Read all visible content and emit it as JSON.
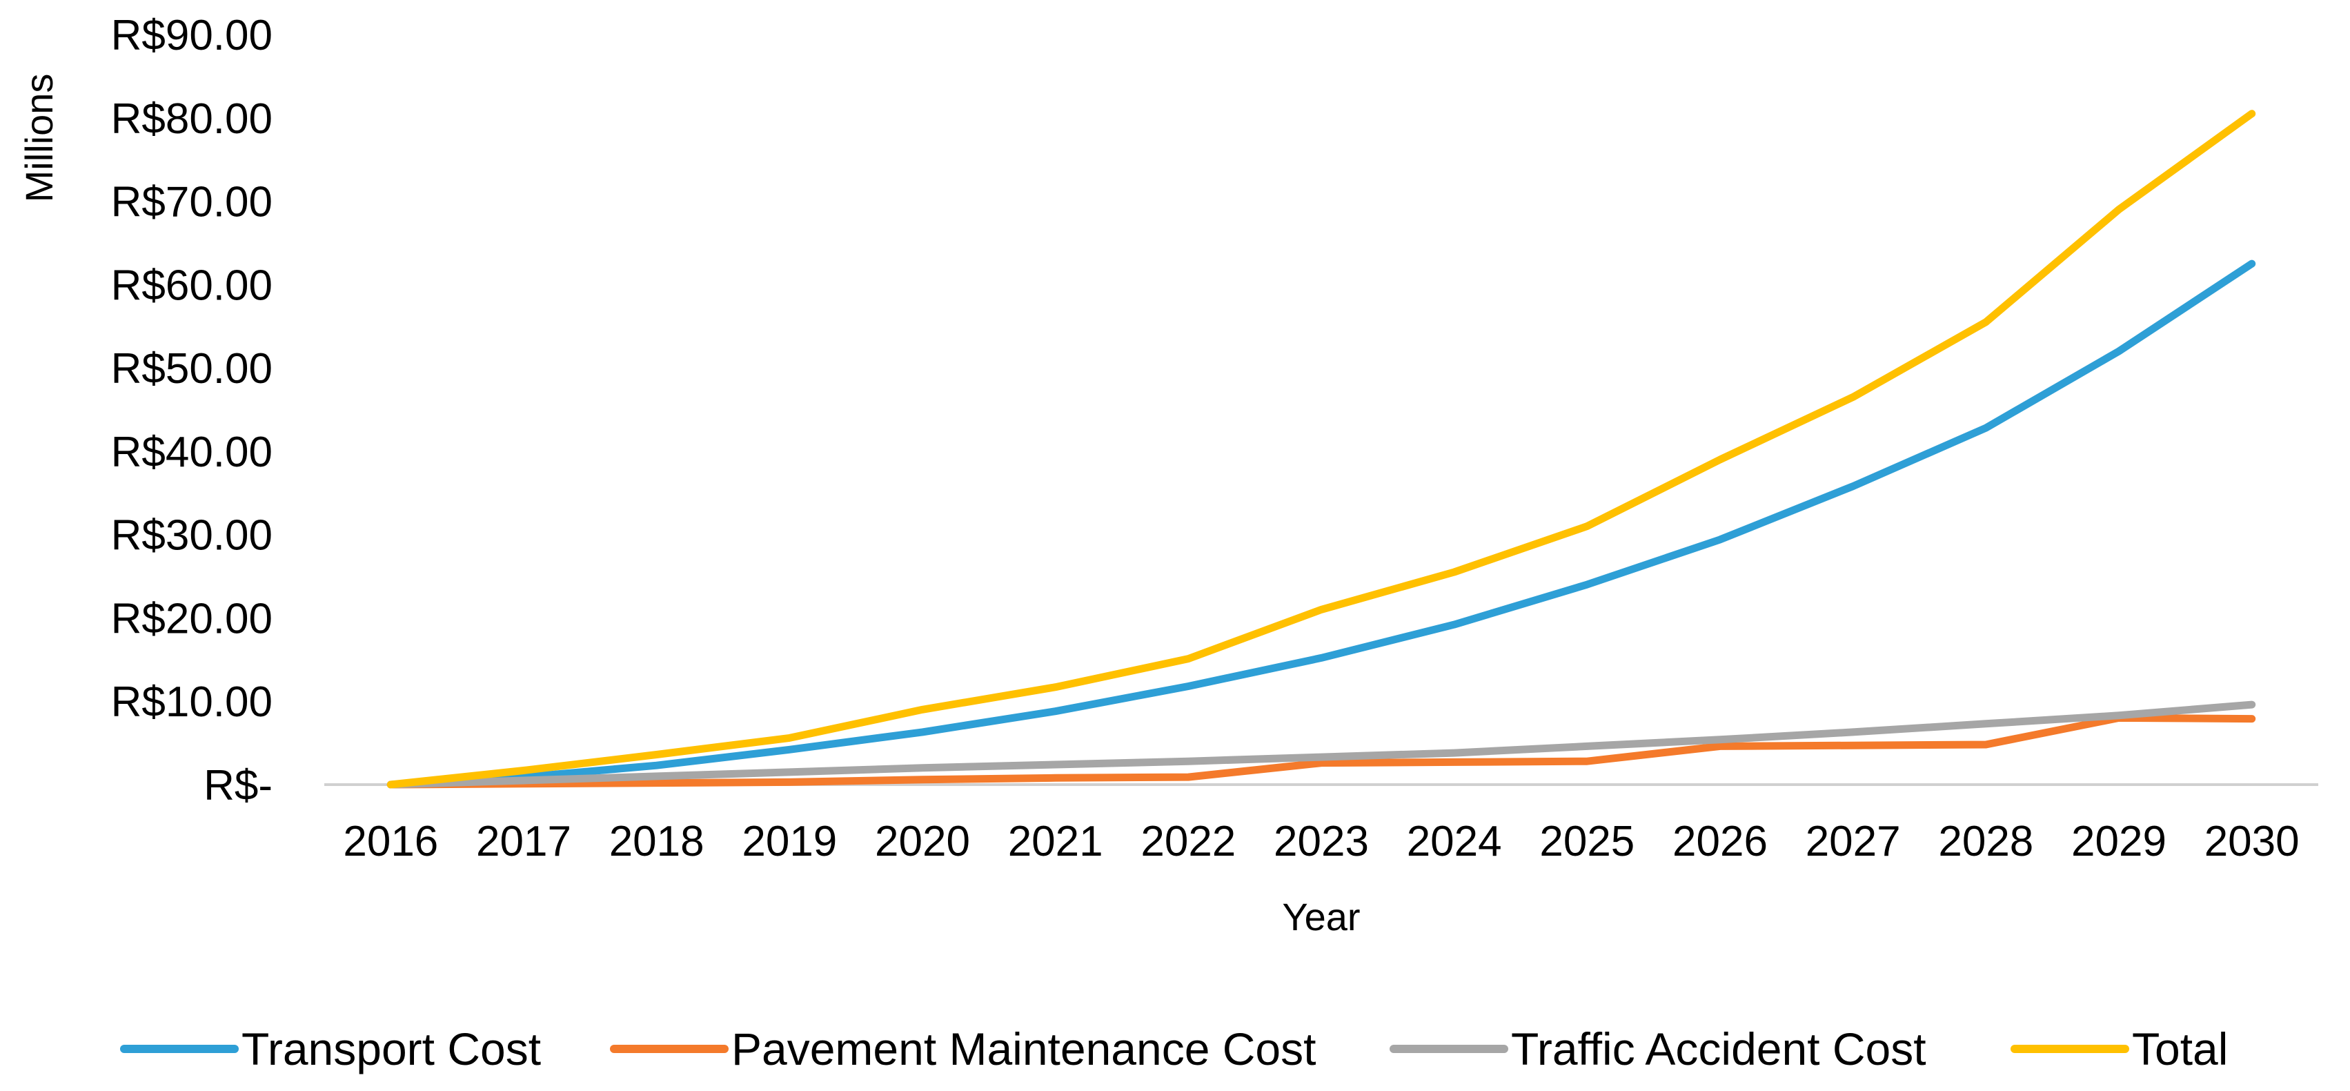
{
  "chart_data": {
    "type": "line",
    "xlabel": "Year",
    "ylabel": "Millions",
    "ylim": [
      0,
      90
    ],
    "yticks": [
      {
        "value": 0,
        "label": "R$-"
      },
      {
        "value": 10,
        "label": "R$10.00"
      },
      {
        "value": 20,
        "label": "R$20.00"
      },
      {
        "value": 30,
        "label": "R$30.00"
      },
      {
        "value": 40,
        "label": "R$40.00"
      },
      {
        "value": 50,
        "label": "R$50.00"
      },
      {
        "value": 60,
        "label": "R$60.00"
      },
      {
        "value": 70,
        "label": "R$70.00"
      },
      {
        "value": 80,
        "label": "R$80.00"
      },
      {
        "value": 90,
        "label": "R$90.00"
      }
    ],
    "categories": [
      "2016",
      "2017",
      "2018",
      "2019",
      "2020",
      "2021",
      "2022",
      "2023",
      "2024",
      "2025",
      "2026",
      "2027",
      "2028",
      "2029",
      "2030"
    ],
    "grid": false,
    "legend_position": "bottom",
    "series": [
      {
        "name": "Transport Cost",
        "color": "#2E9FD6",
        "values": [
          0,
          0.9,
          2.3,
          4.2,
          6.3,
          8.8,
          11.8,
          15.2,
          19.2,
          24.0,
          29.4,
          35.8,
          42.8,
          52.0,
          62.5
        ]
      },
      {
        "name": "Pavement Maintenance Cost",
        "color": "#F47A2B",
        "values": [
          0,
          0.1,
          0.2,
          0.3,
          0.6,
          0.8,
          0.9,
          2.6,
          2.7,
          2.8,
          4.6,
          4.7,
          4.8,
          8.0,
          7.9
        ]
      },
      {
        "name": "Traffic Accident Cost",
        "color": "#A6A6A6",
        "values": [
          0,
          0.5,
          1.0,
          1.5,
          2.0,
          2.4,
          2.8,
          3.3,
          3.8,
          4.6,
          5.4,
          6.3,
          7.3,
          8.3,
          9.6
        ]
      },
      {
        "name": "Total",
        "color": "#FFC000",
        "values": [
          0,
          1.7,
          3.6,
          5.6,
          9.0,
          11.7,
          15.1,
          21.0,
          25.5,
          31.0,
          39.0,
          46.5,
          55.5,
          69.0,
          80.5
        ]
      }
    ]
  }
}
